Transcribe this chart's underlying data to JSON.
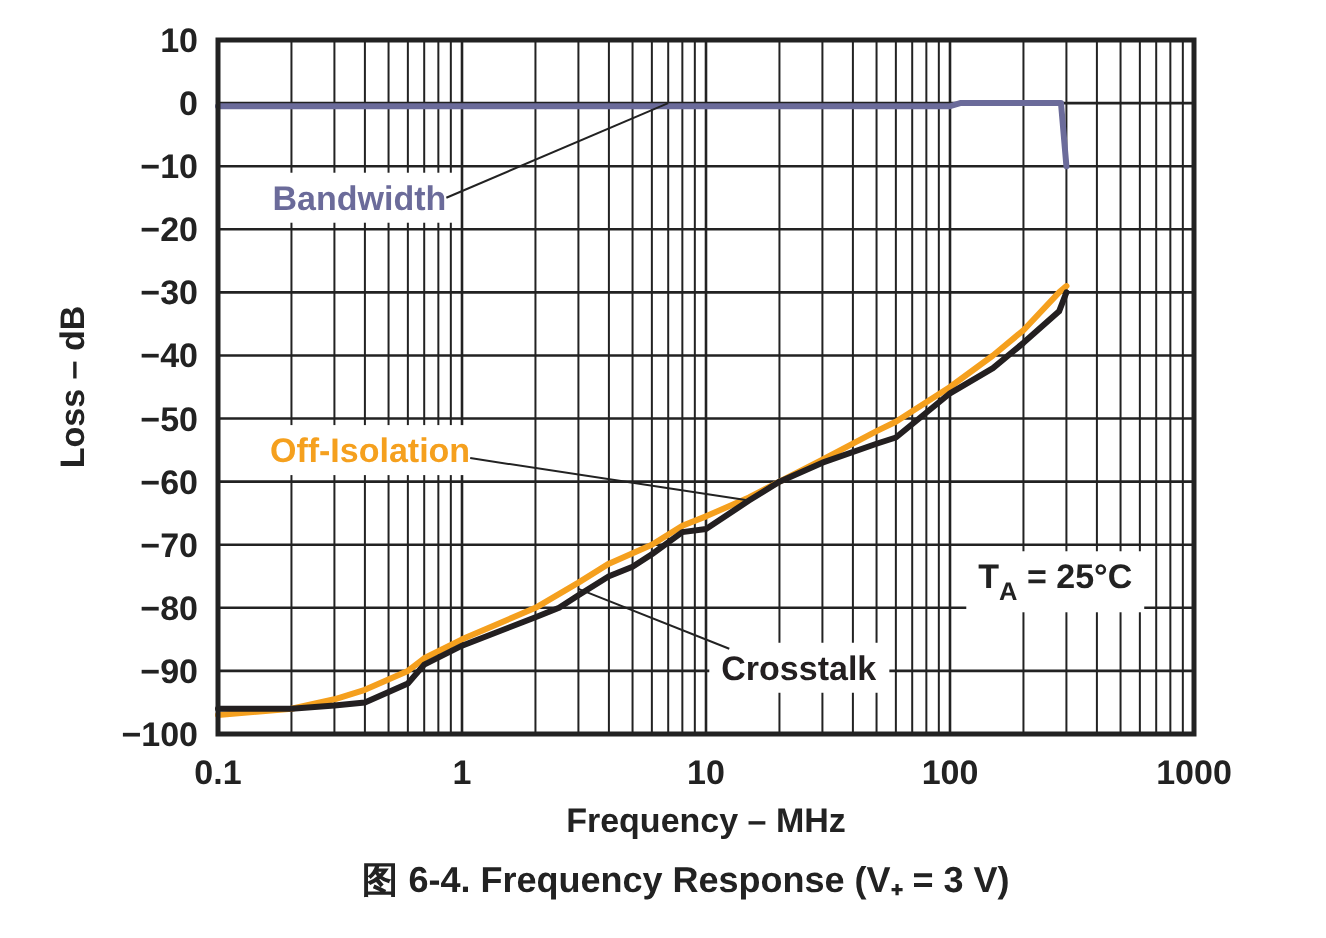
{
  "chart_data": {
    "type": "line",
    "title": "图 6-4. Frequency Response (V₊ = 3 V)",
    "xlabel": "Frequency – MHz",
    "ylabel": "Loss – dB",
    "log": "x",
    "grid": true,
    "xlim": [
      0.1,
      1000
    ],
    "ylim": [
      -100,
      10
    ],
    "xticks": [
      0.1,
      1,
      10,
      100,
      1000
    ],
    "yticks": [
      10,
      0,
      {
        "value": -10,
        "label": "−10"
      },
      {
        "value": -20,
        "label": "−20"
      },
      {
        "value": -30,
        "label": "−30"
      },
      {
        "value": -40,
        "label": "−40"
      },
      {
        "value": -50,
        "label": "−50"
      },
      {
        "value": -60,
        "label": "−60"
      },
      {
        "value": -70,
        "label": "−70"
      },
      {
        "value": -80,
        "label": "−80"
      },
      {
        "value": -90,
        "label": "−90"
      },
      {
        "value": -100,
        "label": "−100"
      }
    ],
    "annotations": [
      "T$_{A}$ = 25°C"
    ],
    "series": [
      {
        "name": "Bandwidth",
        "color": "#6b6b9a",
        "x": [
          0.1,
          1,
          10,
          100,
          110,
          285,
          300
        ],
        "values": [
          -0.5,
          -0.5,
          -0.5,
          -0.5,
          0,
          0,
          -10
        ]
      },
      {
        "name": "Off-Isolation",
        "color": "#f5a01e",
        "x": [
          0.1,
          0.2,
          0.3,
          0.4,
          0.6,
          0.7,
          1,
          2,
          3,
          4,
          6,
          8,
          10,
          15,
          20,
          30,
          50,
          60,
          100,
          150,
          200,
          280,
          300
        ],
        "values": [
          -97,
          -96,
          -94.5,
          -93,
          -90,
          -88,
          -85,
          -80,
          -76,
          -73,
          -70,
          -67,
          -65.5,
          -62.5,
          -60,
          -56.5,
          -52,
          -50.5,
          -45,
          -40,
          -36,
          -30,
          -29
        ]
      },
      {
        "name": "Crosstalk",
        "color": "#231f20",
        "x": [
          0.1,
          0.2,
          0.3,
          0.4,
          0.6,
          0.7,
          1,
          2,
          2.5,
          3,
          4,
          5,
          6,
          8,
          10,
          15,
          20,
          30,
          50,
          60,
          100,
          150,
          200,
          280,
          300
        ],
        "values": [
          -96,
          -96,
          -95.5,
          -95,
          -92,
          -89,
          -86,
          -81.5,
          -80,
          -78,
          -75,
          -73.5,
          -71.5,
          -68,
          -67.5,
          -63,
          -60,
          -57,
          -54,
          -53,
          -46,
          -42,
          -38,
          -33,
          -30
        ]
      }
    ]
  }
}
